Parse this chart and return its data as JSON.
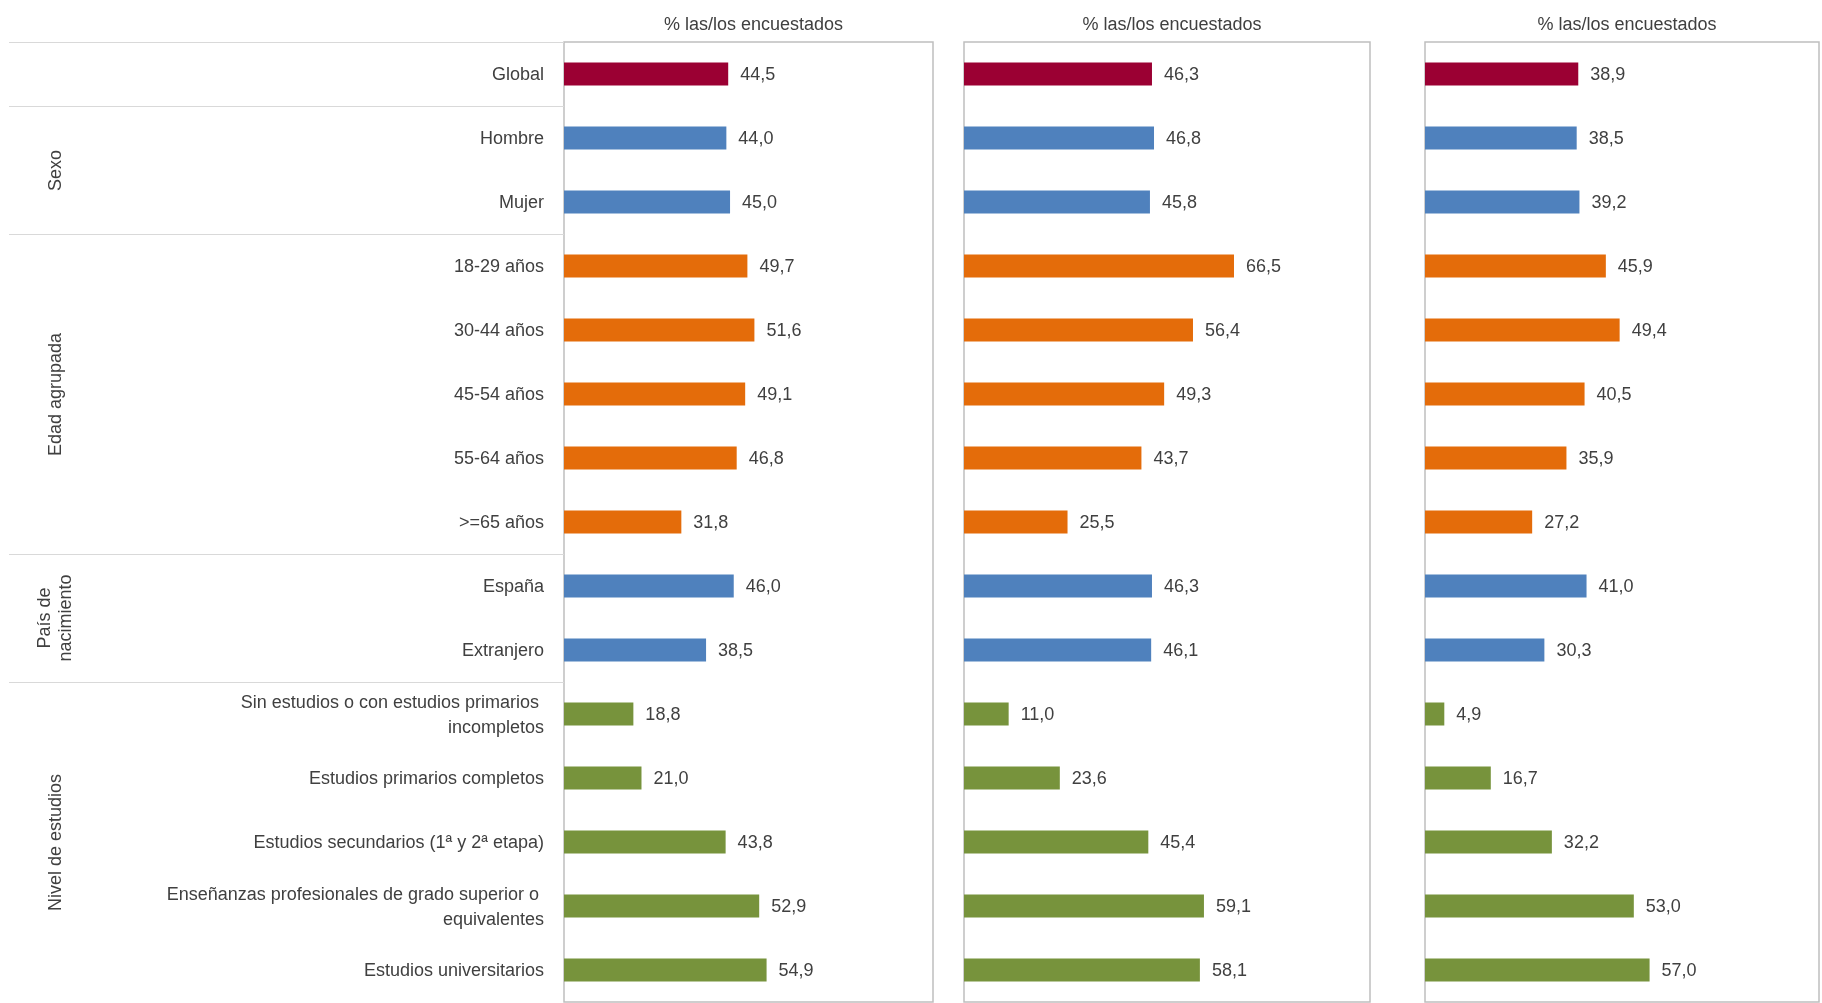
{
  "chart_data": [
    {
      "type": "bar",
      "orientation": "horizontal",
      "title": "% las/los encuestados",
      "xlim": [
        0,
        100
      ],
      "tick_labels": "y",
      "grid": false,
      "categories": [
        "Global",
        "Hombre",
        "Mujer",
        "18-29 años",
        "30-44 años",
        "45-54 años",
        "55-64 años",
        ">=65 años",
        "España",
        "Extranjero",
        "Sin estudios o con estudios primarios incompletos",
        "Estudios primarios completos",
        "Estudios secundarios (1ª y 2ª etapa)",
        "Enseñanzas profesionales de grado superior o equivalentes",
        "Estudios universitarios"
      ],
      "values": [
        44.5,
        44.0,
        45.0,
        49.7,
        51.6,
        49.1,
        46.8,
        31.8,
        46.0,
        38.5,
        18.8,
        21.0,
        43.8,
        52.9,
        54.9
      ],
      "value_labels": [
        "44,5",
        "44,0",
        "45,0",
        "49,7",
        "51,6",
        "49,1",
        "46,8",
        "31,8",
        "46,0",
        "38,5",
        "18,8",
        "21,0",
        "43,8",
        "52,9",
        "54,9"
      ],
      "colors": [
        "#9b0033",
        "#4f81bd",
        "#4f81bd",
        "#e46c0a",
        "#e46c0a",
        "#e46c0a",
        "#e46c0a",
        "#e46c0a",
        "#4f81bd",
        "#4f81bd",
        "#77933c",
        "#77933c",
        "#77933c",
        "#77933c",
        "#77933c"
      ],
      "annotations": [
        "Sexo",
        "Edad agrupada",
        "País de nacimiento",
        "Nivel de estudios"
      ]
    },
    {
      "type": "bar",
      "orientation": "horizontal",
      "title": "% las/los encuestados",
      "xlim": [
        0,
        100
      ],
      "tick_labels": false,
      "grid": false,
      "categories": [
        null,
        null,
        null,
        null,
        null,
        null,
        null,
        null,
        null,
        null,
        null,
        null,
        null,
        null,
        null
      ],
      "values": [
        46.3,
        46.8,
        45.8,
        66.5,
        56.4,
        49.3,
        43.7,
        25.5,
        46.3,
        46.1,
        11.0,
        23.6,
        45.4,
        59.1,
        58.1
      ],
      "value_labels": [
        "46,3",
        "46,8",
        "45,8",
        "66,5",
        "56,4",
        "49,3",
        "43,7",
        "25,5",
        "46,3",
        "46,1",
        "11,0",
        "23,6",
        "45,4",
        "59,1",
        "58,1"
      ],
      "colors": [
        "#9b0033",
        "#4f81bd",
        "#4f81bd",
        "#e46c0a",
        "#e46c0a",
        "#e46c0a",
        "#e46c0a",
        "#e46c0a",
        "#4f81bd",
        "#4f81bd",
        "#77933c",
        "#77933c",
        "#77933c",
        "#77933c",
        "#77933c"
      ]
    },
    {
      "type": "bar",
      "orientation": "horizontal",
      "title": "% las/los encuestados",
      "xlim": [
        0,
        100
      ],
      "tick_labels": false,
      "grid": false,
      "categories": [
        null,
        null,
        null,
        null,
        null,
        null,
        null,
        null,
        null,
        null,
        null,
        null,
        null,
        null,
        null
      ],
      "values": [
        38.9,
        38.5,
        39.2,
        45.9,
        49.4,
        40.5,
        35.9,
        27.2,
        41.0,
        30.3,
        4.9,
        16.7,
        32.2,
        53.0,
        57.0
      ],
      "value_labels": [
        "38,9",
        "38,5",
        "39,2",
        "45,9",
        "49,4",
        "40,5",
        "35,9",
        "27,2",
        "41,0",
        "30,3",
        "4,9",
        "16,7",
        "32,2",
        "53,0",
        "57,0"
      ],
      "colors": [
        "#9b0033",
        "#4f81bd",
        "#4f81bd",
        "#e46c0a",
        "#e46c0a",
        "#e46c0a",
        "#e46c0a",
        "#e46c0a",
        "#4f81bd",
        "#4f81bd",
        "#77933c",
        "#77933c",
        "#77933c",
        "#77933c",
        "#77933c"
      ]
    }
  ]
}
